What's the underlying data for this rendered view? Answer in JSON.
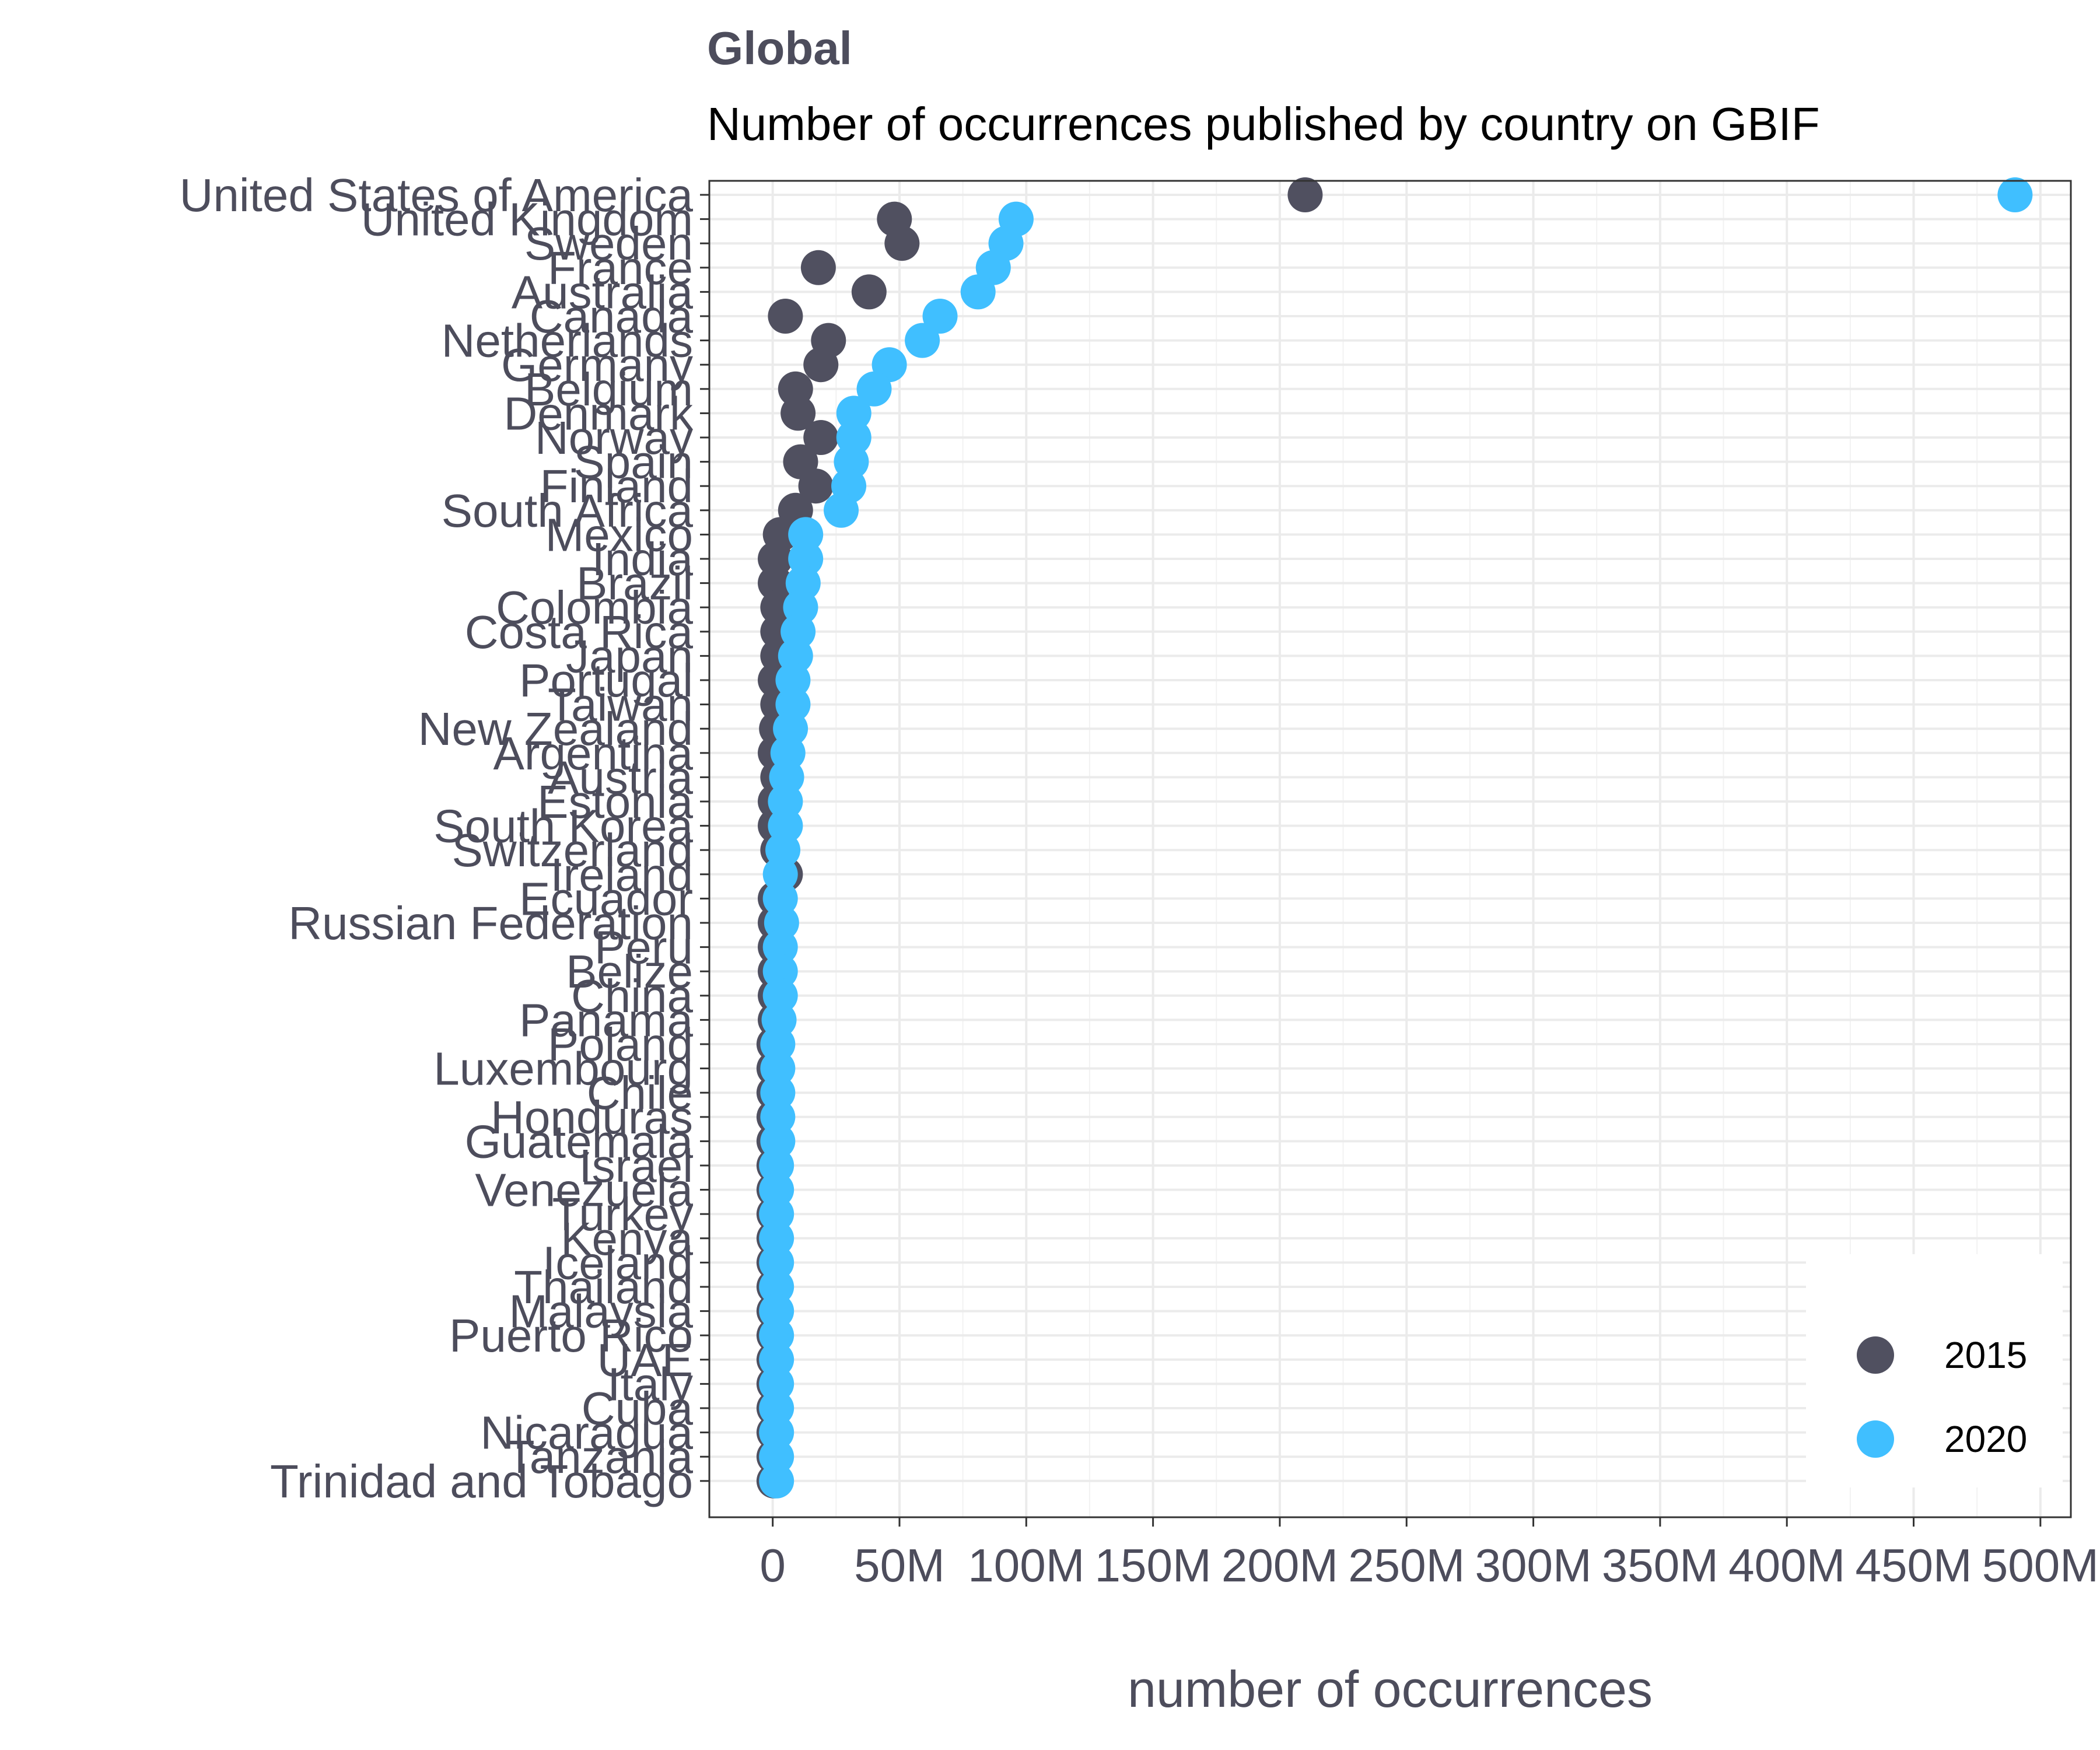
{
  "chart_data": {
    "type": "scatter",
    "title": "Global",
    "subtitle": "Number of occurrences published by country on GBIF",
    "xlabel": "number of occurrences",
    "ylabel": "",
    "xlim": [
      -25000000,
      512000000
    ],
    "x_ticks": [
      0,
      50000000,
      100000000,
      150000000,
      200000000,
      250000000,
      300000000,
      350000000,
      400000000,
      450000000,
      500000000
    ],
    "x_tick_labels": [
      "0",
      "50M",
      "100M",
      "150M",
      "200M",
      "250M",
      "300M",
      "350M",
      "400M",
      "450M",
      "500M"
    ],
    "grid": true,
    "legend_position": "bottom-right",
    "categories": [
      "United States of America",
      "United Kingdom",
      "Sweden",
      "France",
      "Australia",
      "Canada",
      "Netherlands",
      "Germany",
      "Belgium",
      "Denmark",
      "Norway",
      "Spain",
      "Finland",
      "South Africa",
      "Mexico",
      "India",
      "Brazil",
      "Colombia",
      "Costa Rica",
      "Japan",
      "Portugal",
      "Taiwan",
      "New Zealand",
      "Argentina",
      "Austria",
      "Estonia",
      "South Korea",
      "Switzerland",
      "Ireland",
      "Ecuador",
      "Russian Federation",
      "Peru",
      "Belize",
      "China",
      "Panama",
      "Poland",
      "Luxembourg",
      "Chile",
      "Honduras",
      "Guatemala",
      "Israel",
      "Venezuela",
      "Turkey",
      "Kenya",
      "Iceland",
      "Thailand",
      "Malaysia",
      "Puerto Rico",
      "UAE",
      "Italy",
      "Cuba",
      "Nicaragua",
      "Tanzania",
      "Trinidad and Tobago"
    ],
    "series": [
      {
        "name": "2015",
        "color": "#505060",
        "values": [
          210000000,
          48000000,
          51000000,
          18000000,
          38000000,
          5000000,
          22000000,
          19000000,
          9000000,
          10000000,
          19000000,
          11000000,
          17000000,
          9000000,
          3000000,
          1000000,
          1000000,
          2000000,
          2000000,
          2000000,
          1000000,
          2000000,
          1500000,
          1000000,
          2000000,
          1000000,
          1000000,
          2000000,
          5000000,
          1000000,
          1000000,
          1000000,
          1000000,
          1000000,
          1000000,
          500000,
          500000,
          500000,
          500000,
          500000,
          500000,
          500000,
          500000,
          500000,
          500000,
          500000,
          500000,
          500000,
          500000,
          500000,
          500000,
          500000,
          500000,
          500000
        ]
      },
      {
        "name": "2020",
        "color": "#40BFFF",
        "values": [
          490000000,
          96000000,
          92000000,
          87000000,
          81000000,
          66000000,
          59000000,
          46000000,
          40000000,
          32000000,
          32000000,
          31000000,
          30000000,
          27000000,
          13000000,
          13000000,
          12000000,
          11000000,
          10000000,
          9000000,
          8000000,
          8000000,
          7000000,
          6000000,
          5500000,
          5000000,
          5000000,
          4000000,
          3000000,
          3000000,
          3500000,
          3000000,
          3000000,
          3000000,
          2500000,
          2000000,
          2000000,
          2000000,
          2000000,
          2000000,
          1500000,
          1500000,
          1500000,
          1500000,
          1500000,
          1500000,
          1500000,
          1500000,
          1500000,
          1500000,
          1500000,
          1500000,
          1500000,
          1500000
        ]
      }
    ]
  }
}
